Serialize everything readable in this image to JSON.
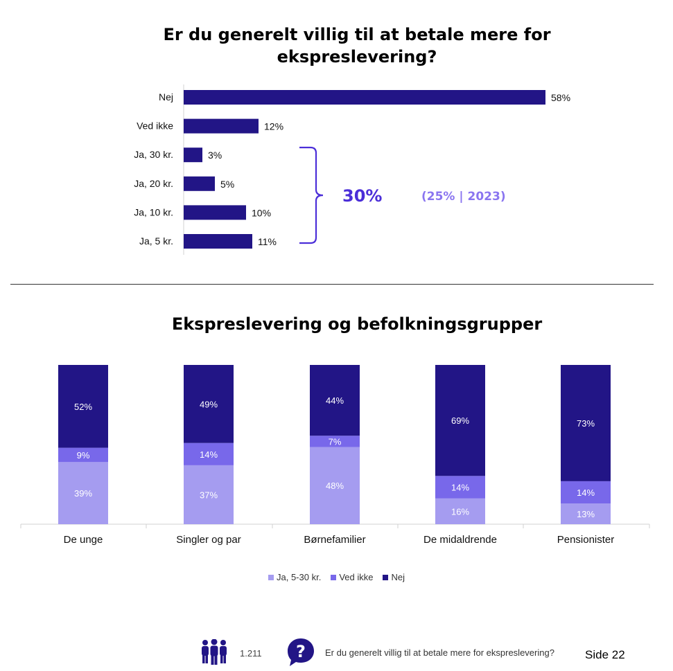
{
  "top_chart": {
    "title": "Er du generelt villig til at betale mere for ekspreslevering?",
    "bracket_total": "30%",
    "bracket_note": "(25% | 2023)"
  },
  "bottom_chart": {
    "title": "Ekspreslevering og befolkningsgrupper"
  },
  "legend": [
    "Ja, 5-30 kr.",
    "Ved ikke",
    "Nej"
  ],
  "footer": {
    "respondents": "1.211",
    "question": "Er du generelt villig til at betale mere for ekspreslevering?",
    "page": "Side 22"
  },
  "colors": {
    "dark": "#221586",
    "medium": "#7868ea",
    "light": "#a59cf0",
    "accent_text": "#4b2ed8",
    "note_text": "#8a75f0"
  },
  "icons": [
    "people-icon",
    "question-bubble-icon"
  ],
  "chart_data": [
    {
      "type": "bar",
      "orientation": "horizontal",
      "categories": [
        "Nej",
        "Ved ikke",
        "Ja, 30 kr.",
        "Ja, 20 kr.",
        "Ja, 10 kr.",
        "Ja, 5 kr."
      ],
      "values": [
        58,
        12,
        3,
        5,
        10,
        11
      ],
      "data_labels": [
        "58%",
        "12%",
        "3%",
        "5%",
        "10%",
        "11%"
      ],
      "title": "Er du generelt villig til at betale mere for ekspreslevering?",
      "xlim": [
        0,
        60
      ],
      "grid": false
    },
    {
      "type": "bar",
      "stacked": true,
      "categories": [
        "De unge",
        "Singler og par",
        "Børnefamilier",
        "De midaldrende",
        "Pensionister"
      ],
      "series": [
        {
          "name": "Ja, 5-30 kr.",
          "values": [
            39,
            37,
            48,
            16,
            13
          ]
        },
        {
          "name": "Ved ikke",
          "values": [
            9,
            14,
            7,
            14,
            14
          ]
        },
        {
          "name": "Nej",
          "values": [
            52,
            49,
            44,
            69,
            73
          ]
        }
      ],
      "title": "Ekspreslevering og befolkningsgrupper",
      "ylim": [
        0,
        100
      ],
      "legend": "bottom",
      "grid": false
    }
  ]
}
